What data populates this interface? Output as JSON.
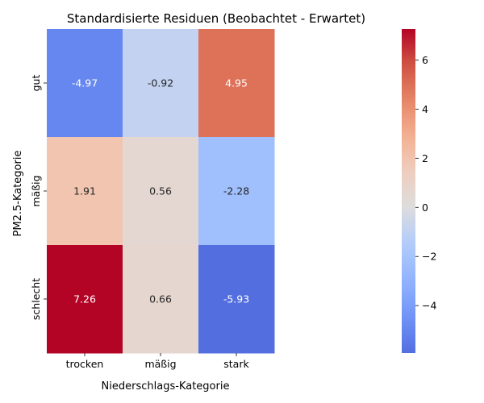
{
  "chart_data": {
    "type": "heatmap",
    "title": "Standardisierte Residuen (Beobachtet - Erwartet)",
    "xlabel": "Niederschlags-Kategorie",
    "ylabel": "PM2.5-Kategorie",
    "x_categories": [
      "trocken",
      "mäßig",
      "stark"
    ],
    "y_categories": [
      "gut",
      "mäßig",
      "schlecht"
    ],
    "values": [
      [
        -4.97,
        -0.92,
        4.95
      ],
      [
        1.91,
        0.56,
        -2.28
      ],
      [
        7.26,
        0.66,
        -5.93
      ]
    ],
    "colormap": "coolwarm",
    "center": 0,
    "vmin": -5.93,
    "vmax": 7.26,
    "colorbar_ticks": [
      -4,
      -2,
      0,
      2,
      4,
      6
    ],
    "annotation_colors": {
      "dark_cell": "#ffffff",
      "light_cell": "#262626"
    }
  }
}
